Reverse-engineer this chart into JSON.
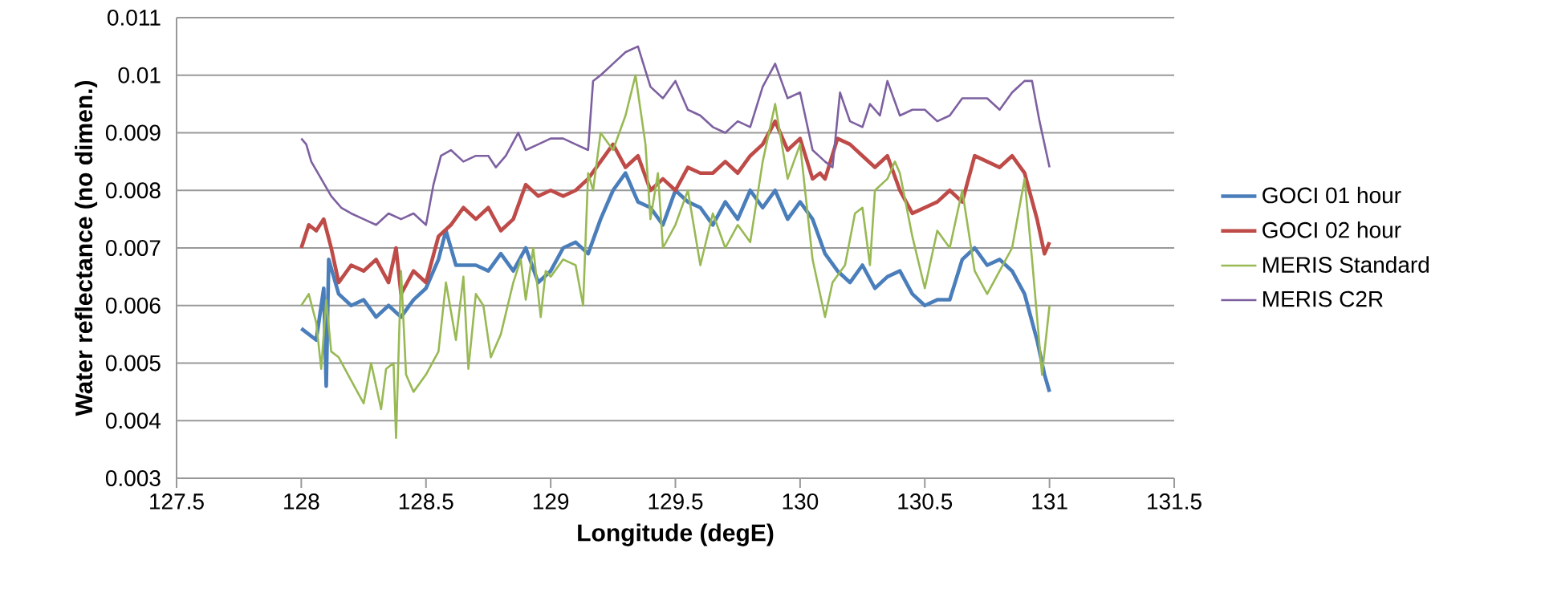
{
  "chart_data": {
    "type": "line",
    "xlabel": "Longitude (degE)",
    "ylabel": "Water reflectance (no dimen.)",
    "xlim": [
      127.5,
      131.5
    ],
    "xticks": [
      127.5,
      128,
      128.5,
      129,
      129.5,
      130,
      130.5,
      131,
      131.5
    ],
    "ylim": [
      0.003,
      0.011
    ],
    "yticks": [
      0.003,
      0.004,
      0.005,
      0.006,
      0.007,
      0.008,
      0.009,
      0.01,
      0.011
    ],
    "grid": "y",
    "legend": "right",
    "marker": "none",
    "line_style": "solid",
    "series": [
      {
        "name": "GOCI 01 hour",
        "color": "#4a7ebb",
        "x": [
          128.0,
          128.03,
          128.06,
          128.09,
          128.1,
          128.11,
          128.15,
          128.2,
          128.25,
          128.3,
          128.35,
          128.4,
          128.45,
          128.5,
          128.55,
          128.58,
          128.62,
          128.7,
          128.75,
          128.8,
          128.85,
          128.9,
          128.95,
          129.0,
          129.05,
          129.1,
          129.15,
          129.2,
          129.25,
          129.3,
          129.35,
          129.4,
          129.45,
          129.5,
          129.55,
          129.6,
          129.65,
          129.7,
          129.75,
          129.8,
          129.85,
          129.9,
          129.95,
          130.0,
          130.05,
          130.1,
          130.15,
          130.2,
          130.25,
          130.3,
          130.35,
          130.4,
          130.45,
          130.5,
          130.55,
          130.6,
          130.65,
          130.7,
          130.75,
          130.8,
          130.85,
          130.9,
          130.95,
          130.98,
          131.0
        ],
        "values": [
          0.0056,
          0.0055,
          0.0054,
          0.0063,
          0.0046,
          0.0068,
          0.0062,
          0.006,
          0.0061,
          0.0058,
          0.006,
          0.0058,
          0.0061,
          0.0063,
          0.0068,
          0.0073,
          0.0067,
          0.0067,
          0.0066,
          0.0069,
          0.0066,
          0.007,
          0.0064,
          0.0066,
          0.007,
          0.0071,
          0.0069,
          0.0075,
          0.008,
          0.0083,
          0.0078,
          0.0077,
          0.0074,
          0.008,
          0.0078,
          0.0077,
          0.0074,
          0.0078,
          0.0075,
          0.008,
          0.0077,
          0.008,
          0.0075,
          0.0078,
          0.0075,
          0.0069,
          0.0066,
          0.0064,
          0.0067,
          0.0063,
          0.0065,
          0.0066,
          0.0062,
          0.006,
          0.0061,
          0.0061,
          0.0068,
          0.007,
          0.0067,
          0.0068,
          0.0066,
          0.0062,
          0.0054,
          0.0048,
          0.0045
        ]
      },
      {
        "name": "GOCI 02 hour",
        "color": "#be4b48",
        "x": [
          128.0,
          128.03,
          128.06,
          128.09,
          128.12,
          128.15,
          128.2,
          128.25,
          128.3,
          128.35,
          128.38,
          128.4,
          128.45,
          128.5,
          128.55,
          128.6,
          128.65,
          128.7,
          128.75,
          128.8,
          128.85,
          128.9,
          128.95,
          129.0,
          129.05,
          129.1,
          129.15,
          129.2,
          129.25,
          129.3,
          129.35,
          129.4,
          129.45,
          129.5,
          129.55,
          129.6,
          129.65,
          129.7,
          129.75,
          129.8,
          129.85,
          129.9,
          129.95,
          130.0,
          130.05,
          130.08,
          130.1,
          130.15,
          130.2,
          130.25,
          130.3,
          130.35,
          130.4,
          130.45,
          130.5,
          130.55,
          130.6,
          130.65,
          130.7,
          130.75,
          130.8,
          130.85,
          130.9,
          130.95,
          130.98,
          131.0
        ],
        "values": [
          0.007,
          0.0074,
          0.0073,
          0.0075,
          0.007,
          0.0064,
          0.0067,
          0.0066,
          0.0068,
          0.0064,
          0.007,
          0.0062,
          0.0066,
          0.0064,
          0.0072,
          0.0074,
          0.0077,
          0.0075,
          0.0077,
          0.0073,
          0.0075,
          0.0081,
          0.0079,
          0.008,
          0.0079,
          0.008,
          0.0082,
          0.0085,
          0.0088,
          0.0084,
          0.0086,
          0.008,
          0.0082,
          0.008,
          0.0084,
          0.0083,
          0.0083,
          0.0085,
          0.0083,
          0.0086,
          0.0088,
          0.0092,
          0.0087,
          0.0089,
          0.0082,
          0.0083,
          0.0082,
          0.0089,
          0.0088,
          0.0086,
          0.0084,
          0.0086,
          0.008,
          0.0076,
          0.0077,
          0.0078,
          0.008,
          0.0078,
          0.0086,
          0.0085,
          0.0084,
          0.0086,
          0.0083,
          0.0075,
          0.0069,
          0.0071
        ]
      },
      {
        "name": "MERIS Standard",
        "color": "#98b954",
        "x": [
          128.0,
          128.03,
          128.06,
          128.08,
          128.1,
          128.12,
          128.15,
          128.2,
          128.25,
          128.28,
          128.32,
          128.34,
          128.37,
          128.38,
          128.4,
          128.42,
          128.45,
          128.5,
          128.55,
          128.58,
          128.62,
          128.65,
          128.67,
          128.7,
          128.73,
          128.76,
          128.8,
          128.85,
          128.88,
          128.9,
          128.93,
          128.96,
          128.98,
          129.0,
          129.05,
          129.1,
          129.13,
          129.15,
          129.17,
          129.2,
          129.25,
          129.3,
          129.34,
          129.38,
          129.4,
          129.43,
          129.45,
          129.5,
          129.55,
          129.6,
          129.65,
          129.7,
          129.75,
          129.8,
          129.85,
          129.9,
          129.95,
          130.0,
          130.05,
          130.1,
          130.13,
          130.18,
          130.22,
          130.25,
          130.28,
          130.3,
          130.35,
          130.38,
          130.4,
          130.45,
          130.5,
          130.55,
          130.6,
          130.65,
          130.7,
          130.75,
          130.8,
          130.85,
          130.9,
          130.93,
          130.97,
          131.0
        ],
        "values": [
          0.006,
          0.0062,
          0.0057,
          0.0049,
          0.0061,
          0.0052,
          0.0051,
          0.0047,
          0.0043,
          0.005,
          0.0042,
          0.0049,
          0.005,
          0.0037,
          0.0066,
          0.0048,
          0.0045,
          0.0048,
          0.0052,
          0.0064,
          0.0054,
          0.0065,
          0.0049,
          0.0062,
          0.006,
          0.0051,
          0.0055,
          0.0064,
          0.0068,
          0.0061,
          0.007,
          0.0058,
          0.0066,
          0.0065,
          0.0068,
          0.0067,
          0.006,
          0.0083,
          0.008,
          0.009,
          0.0087,
          0.0093,
          0.01,
          0.0088,
          0.0075,
          0.0083,
          0.007,
          0.0074,
          0.008,
          0.0067,
          0.0076,
          0.007,
          0.0074,
          0.0071,
          0.0085,
          0.0095,
          0.0082,
          0.0088,
          0.0068,
          0.0058,
          0.0064,
          0.0067,
          0.0076,
          0.0077,
          0.0067,
          0.008,
          0.0082,
          0.0085,
          0.0083,
          0.0072,
          0.0063,
          0.0073,
          0.007,
          0.008,
          0.0066,
          0.0062,
          0.0066,
          0.007,
          0.0082,
          0.0068,
          0.0048,
          0.006
        ]
      },
      {
        "name": "MERIS C2R",
        "color": "#7d60a0",
        "x": [
          128.0,
          128.02,
          128.04,
          128.08,
          128.12,
          128.16,
          128.2,
          128.25,
          128.3,
          128.35,
          128.4,
          128.45,
          128.5,
          128.53,
          128.56,
          128.6,
          128.65,
          128.7,
          128.75,
          128.78,
          128.82,
          128.87,
          128.9,
          128.95,
          129.0,
          129.05,
          129.1,
          129.15,
          129.17,
          129.2,
          129.25,
          129.3,
          129.35,
          129.4,
          129.45,
          129.5,
          129.55,
          129.6,
          129.65,
          129.7,
          129.75,
          129.8,
          129.85,
          129.9,
          129.95,
          130.0,
          130.05,
          130.1,
          130.13,
          130.16,
          130.2,
          130.25,
          130.28,
          130.32,
          130.35,
          130.4,
          130.45,
          130.5,
          130.55,
          130.6,
          130.65,
          130.7,
          130.75,
          130.8,
          130.85,
          130.9,
          130.93,
          130.96,
          131.0
        ],
        "values": [
          0.0089,
          0.0088,
          0.0085,
          0.0082,
          0.0079,
          0.0077,
          0.0076,
          0.0075,
          0.0074,
          0.0076,
          0.0075,
          0.0076,
          0.0074,
          0.0081,
          0.0086,
          0.0087,
          0.0085,
          0.0086,
          0.0086,
          0.0084,
          0.0086,
          0.009,
          0.0087,
          0.0088,
          0.0089,
          0.0089,
          0.0088,
          0.0087,
          0.0099,
          0.01,
          0.0102,
          0.0104,
          0.0105,
          0.0098,
          0.0096,
          0.0099,
          0.0094,
          0.0093,
          0.0091,
          0.009,
          0.0092,
          0.0091,
          0.0098,
          0.0102,
          0.0096,
          0.0097,
          0.0087,
          0.0085,
          0.0084,
          0.0097,
          0.0092,
          0.0091,
          0.0095,
          0.0093,
          0.0099,
          0.0093,
          0.0094,
          0.0094,
          0.0092,
          0.0093,
          0.0096,
          0.0096,
          0.0096,
          0.0094,
          0.0097,
          0.0099,
          0.0099,
          0.0092,
          0.0084
        ]
      }
    ]
  }
}
